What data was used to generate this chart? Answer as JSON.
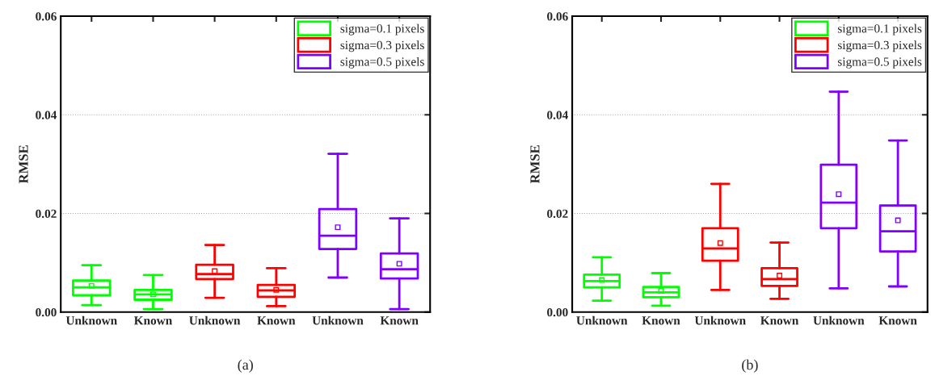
{
  "chart_data": [
    {
      "type": "box",
      "ylabel": "RMSE",
      "annotations": [
        "(a)"
      ],
      "categories": [
        "Unknown",
        "Known",
        "Unknown",
        "Known",
        "Unknown",
        "Known"
      ],
      "ylim": [
        0,
        0.06
      ],
      "yticks": [
        {
          "value": 0,
          "label": "0.00"
        },
        0.02,
        0.04,
        0.06
      ],
      "grid": "y",
      "legend": "top right",
      "series": [
        {
          "name": "sigma=0.1 pixels",
          "color": "#00ff00",
          "boxes": [
            {
              "low": 0.0014,
              "q1": 0.0034,
              "median": 0.005,
              "q3": 0.0064,
              "high": 0.0095,
              "mean": 0.0053
            },
            {
              "low": 0.0006,
              "q1": 0.0025,
              "median": 0.0036,
              "q3": 0.0045,
              "high": 0.0075,
              "mean": 0.0036
            },
            null,
            null,
            null,
            null
          ]
        },
        {
          "name": "sigma=0.3 pixels",
          "color": "#ff0000",
          "boxes": [
            null,
            null,
            {
              "low": 0.0029,
              "q1": 0.0067,
              "median": 0.0077,
              "q3": 0.0096,
              "high": 0.0136,
              "mean": 0.0083
            },
            {
              "low": 0.0012,
              "q1": 0.0031,
              "median": 0.0044,
              "q3": 0.0055,
              "high": 0.0089,
              "mean": 0.0045
            },
            null,
            null
          ]
        },
        {
          "name": "sigma=0.5 pixels",
          "color": "#8000ff",
          "boxes": [
            null,
            null,
            null,
            null,
            {
              "low": 0.007,
              "q1": 0.0128,
              "median": 0.0155,
              "q3": 0.0209,
              "high": 0.0321,
              "mean": 0.0172
            },
            {
              "low": 0.0006,
              "q1": 0.0068,
              "median": 0.0087,
              "q3": 0.0119,
              "high": 0.019,
              "mean": 0.0098
            }
          ]
        }
      ]
    },
    {
      "type": "box",
      "ylabel": "RMSE",
      "annotations": [
        "(b)"
      ],
      "categories": [
        "Unknown",
        "Known",
        "Unknown",
        "Known",
        "Unknown",
        "Known"
      ],
      "ylim": [
        0,
        0.06
      ],
      "yticks": [
        {
          "value": 0,
          "label": "0.00"
        },
        0.02,
        0.04,
        0.06
      ],
      "grid": "y",
      "legend": "top right",
      "series": [
        {
          "name": "sigma=0.1 pixels",
          "color": "#00ff00",
          "boxes": [
            {
              "low": 0.0023,
              "q1": 0.005,
              "median": 0.0063,
              "q3": 0.0076,
              "high": 0.0111,
              "mean": 0.0065
            },
            {
              "low": 0.0013,
              "q1": 0.003,
              "median": 0.004,
              "q3": 0.0051,
              "high": 0.0079,
              "mean": 0.0043
            },
            null,
            null,
            null,
            null
          ]
        },
        {
          "name": "sigma=0.3 pixels",
          "color": "#ff0000",
          "boxes": [
            null,
            null,
            {
              "low": 0.0045,
              "q1": 0.0104,
              "median": 0.0129,
              "q3": 0.017,
              "high": 0.026,
              "mean": 0.014
            },
            {
              "low": 0.0027,
              "q1": 0.0053,
              "median": 0.0067,
              "q3": 0.0089,
              "high": 0.0141,
              "mean": 0.0074
            },
            null,
            null
          ]
        },
        {
          "name": "sigma=0.5 pixels",
          "color": "#8000ff",
          "boxes": [
            null,
            null,
            null,
            null,
            {
              "low": 0.0048,
              "q1": 0.017,
              "median": 0.0222,
              "q3": 0.0299,
              "high": 0.0447,
              "mean": 0.0239
            },
            {
              "low": 0.0052,
              "q1": 0.0123,
              "median": 0.0164,
              "q3": 0.0216,
              "high": 0.0348,
              "mean": 0.0186
            }
          ]
        }
      ]
    }
  ]
}
